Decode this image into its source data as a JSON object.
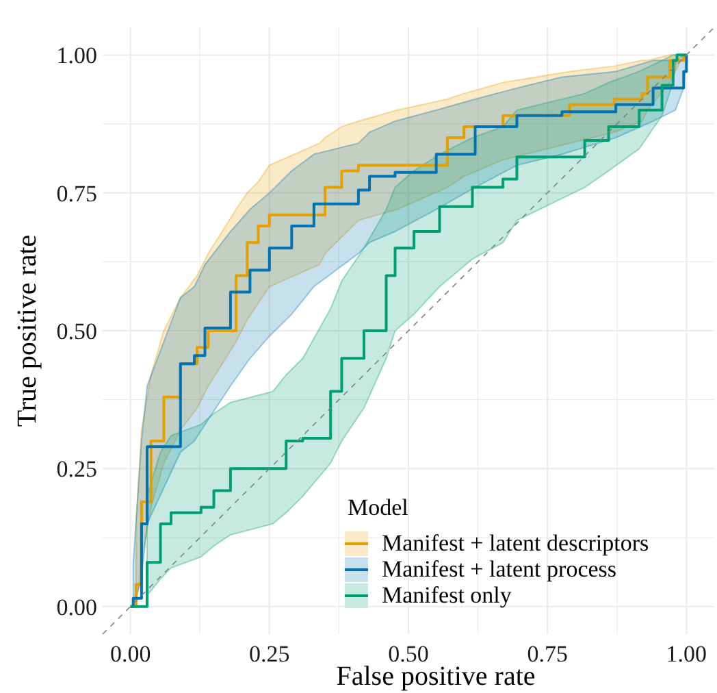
{
  "chart_data": {
    "type": "step",
    "xlabel": "False positive rate",
    "ylabel": "True positive rate",
    "legend_title": "Model",
    "legend": "bottom right",
    "grid": true,
    "xlim": [
      -0.05,
      1.05
    ],
    "ylim": [
      -0.05,
      1.05
    ],
    "xticks": [
      {
        "value": 0,
        "label": "0.00"
      },
      {
        "value": 0.125,
        "label": null
      },
      {
        "value": 0.25,
        "label": "0.25"
      },
      {
        "value": 0.375,
        "label": null
      },
      {
        "value": 0.5,
        "label": "0.50"
      },
      {
        "value": 0.625,
        "label": null
      },
      {
        "value": 0.75,
        "label": "0.75"
      },
      {
        "value": 0.875,
        "label": null
      },
      {
        "value": 1,
        "label": "1.00"
      }
    ],
    "yticks": [
      {
        "value": 0,
        "label": "0.00"
      },
      {
        "value": 0.125,
        "label": null
      },
      {
        "value": 0.25,
        "label": "0.25"
      },
      {
        "value": 0.375,
        "label": null
      },
      {
        "value": 0.5,
        "label": "0.50"
      },
      {
        "value": 0.625,
        "label": null
      },
      {
        "value": 0.75,
        "label": "0.75"
      },
      {
        "value": 0.875,
        "label": null
      },
      {
        "value": 1,
        "label": "1.00"
      }
    ],
    "series": [
      {
        "name": "Manifest + latent descriptors",
        "color": "#e69f00",
        "x": [
          0,
          0.01,
          0.02,
          0.037,
          0.06,
          0.09,
          0.12,
          0.14,
          0.19,
          0.21,
          0.23,
          0.25,
          0.34,
          0.35,
          0.38,
          0.41,
          0.48,
          0.57,
          0.6,
          0.67,
          0.79,
          0.87,
          0.92,
          0.93,
          0.97,
          0.995,
          1
        ],
        "values": [
          0,
          0.04,
          0.19,
          0.3,
          0.38,
          0.44,
          0.47,
          0.5,
          0.6,
          0.66,
          0.69,
          0.71,
          0.71,
          0.76,
          0.79,
          0.8,
          0.8,
          0.85,
          0.87,
          0.89,
          0.91,
          0.92,
          0.93,
          0.96,
          0.99,
          1,
          1
        ],
        "lower": [
          null,
          0,
          0.08,
          0.18,
          0.26,
          0.32,
          0.36,
          0.4,
          0.48,
          0.52,
          0.55,
          0.58,
          0.62,
          0.64,
          0.67,
          0.7,
          0.72,
          0.76,
          0.78,
          0.81,
          0.84,
          0.86,
          0.88,
          0.9,
          0.95,
          1,
          1
        ],
        "upper": [
          null,
          0.15,
          0.32,
          0.42,
          0.5,
          0.56,
          0.6,
          0.64,
          0.72,
          0.75,
          0.77,
          0.8,
          0.84,
          0.85,
          0.87,
          0.88,
          0.9,
          0.92,
          0.93,
          0.95,
          0.97,
          0.98,
          0.99,
          0.99,
          1,
          1,
          1
        ]
      },
      {
        "name": "Manifest + latent process",
        "color": "#0072b2",
        "x": [
          0,
          0.005,
          0.02,
          0.03,
          0.09,
          0.115,
          0.134,
          0.18,
          0.215,
          0.25,
          0.29,
          0.33,
          0.41,
          0.43,
          0.476,
          0.55,
          0.62,
          0.695,
          0.776,
          0.873,
          0.94,
          0.98,
          0.995,
          1
        ],
        "values": [
          0,
          0.015,
          0.15,
          0.29,
          0.44,
          0.455,
          0.505,
          0.57,
          0.61,
          0.65,
          0.69,
          0.73,
          0.755,
          0.78,
          0.787,
          0.82,
          0.87,
          0.89,
          0.897,
          0.91,
          0.94,
          0.94,
          0.97,
          1
        ],
        "lower": [
          null,
          0,
          0.05,
          0.15,
          0.28,
          0.3,
          0.33,
          0.4,
          0.45,
          0.49,
          0.53,
          0.58,
          0.64,
          0.66,
          0.68,
          0.72,
          0.76,
          0.8,
          0.82,
          0.85,
          0.88,
          0.9,
          0.94,
          1
        ],
        "upper": [
          null,
          0.08,
          0.3,
          0.4,
          0.56,
          0.58,
          0.62,
          0.68,
          0.72,
          0.75,
          0.79,
          0.82,
          0.84,
          0.86,
          0.88,
          0.9,
          0.92,
          0.94,
          0.96,
          0.97,
          0.99,
          0.99,
          1,
          1
        ]
      },
      {
        "name": "Manifest only",
        "color": "#009e73",
        "x": [
          0,
          0.03,
          0.054,
          0.073,
          0.127,
          0.15,
          0.18,
          0.256,
          0.28,
          0.31,
          0.36,
          0.38,
          0.42,
          0.46,
          0.476,
          0.51,
          0.556,
          0.615,
          0.67,
          0.695,
          0.817,
          0.86,
          0.915,
          0.956,
          0.976,
          0.983,
          1
        ],
        "values": [
          0,
          0.08,
          0.15,
          0.17,
          0.18,
          0.21,
          0.25,
          0.25,
          0.3,
          0.305,
          0.39,
          0.45,
          0.5,
          0.6,
          0.65,
          0.68,
          0.725,
          0.76,
          0.775,
          0.815,
          0.845,
          0.87,
          0.9,
          0.945,
          0.99,
          1,
          1
        ],
        "lower": [
          null,
          0.02,
          0.05,
          0.07,
          0.09,
          0.11,
          0.13,
          0.15,
          0.17,
          0.2,
          0.26,
          0.3,
          0.36,
          0.45,
          0.5,
          0.53,
          0.58,
          0.63,
          0.66,
          0.7,
          0.76,
          0.79,
          0.83,
          0.89,
          0.95,
          1,
          1
        ],
        "upper": [
          null,
          0.2,
          0.28,
          0.31,
          0.33,
          0.35,
          0.37,
          0.39,
          0.42,
          0.45,
          0.54,
          0.59,
          0.65,
          0.72,
          0.76,
          0.79,
          0.82,
          0.85,
          0.87,
          0.9,
          0.93,
          0.95,
          0.97,
          0.99,
          1,
          1,
          1
        ]
      },
      {
        "type": "line",
        "color": "#808080",
        "line_style": "dashed",
        "x": [
          -0.05,
          1.05
        ],
        "values": [
          -0.05,
          1.05
        ]
      }
    ]
  }
}
